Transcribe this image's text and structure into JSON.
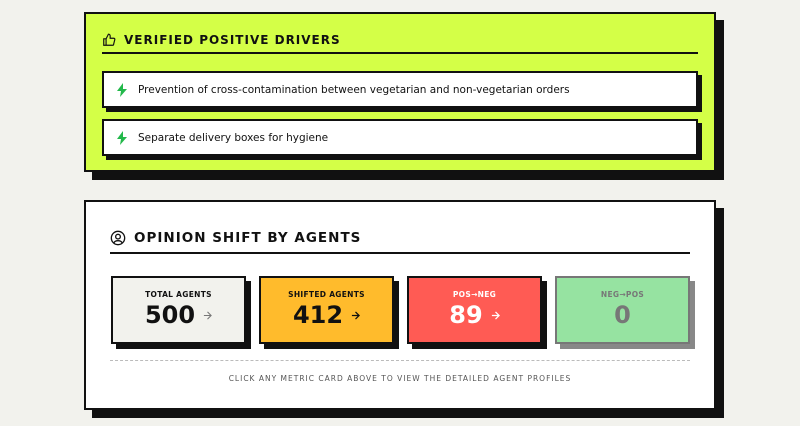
{
  "drivers_panel": {
    "title": "VERIFIED POSITIVE DRIVERS",
    "items": [
      "Prevention of cross-contamination between vegetarian and non-vegetarian orders",
      "Separate delivery boxes for hygiene"
    ]
  },
  "agents_panel": {
    "title": "OPINION SHIFT BY AGENTS",
    "metrics": [
      {
        "label": "TOTAL AGENTS",
        "value": 500
      },
      {
        "label": "SHIFTED AGENTS",
        "value": 412
      },
      {
        "label": "POS→NEG",
        "value": 89
      },
      {
        "label": "NEG→POS",
        "value": 0
      }
    ],
    "hint": "CLICK ANY METRIC CARD ABOVE TO VIEW THE DETAILED AGENT PROFILES"
  }
}
